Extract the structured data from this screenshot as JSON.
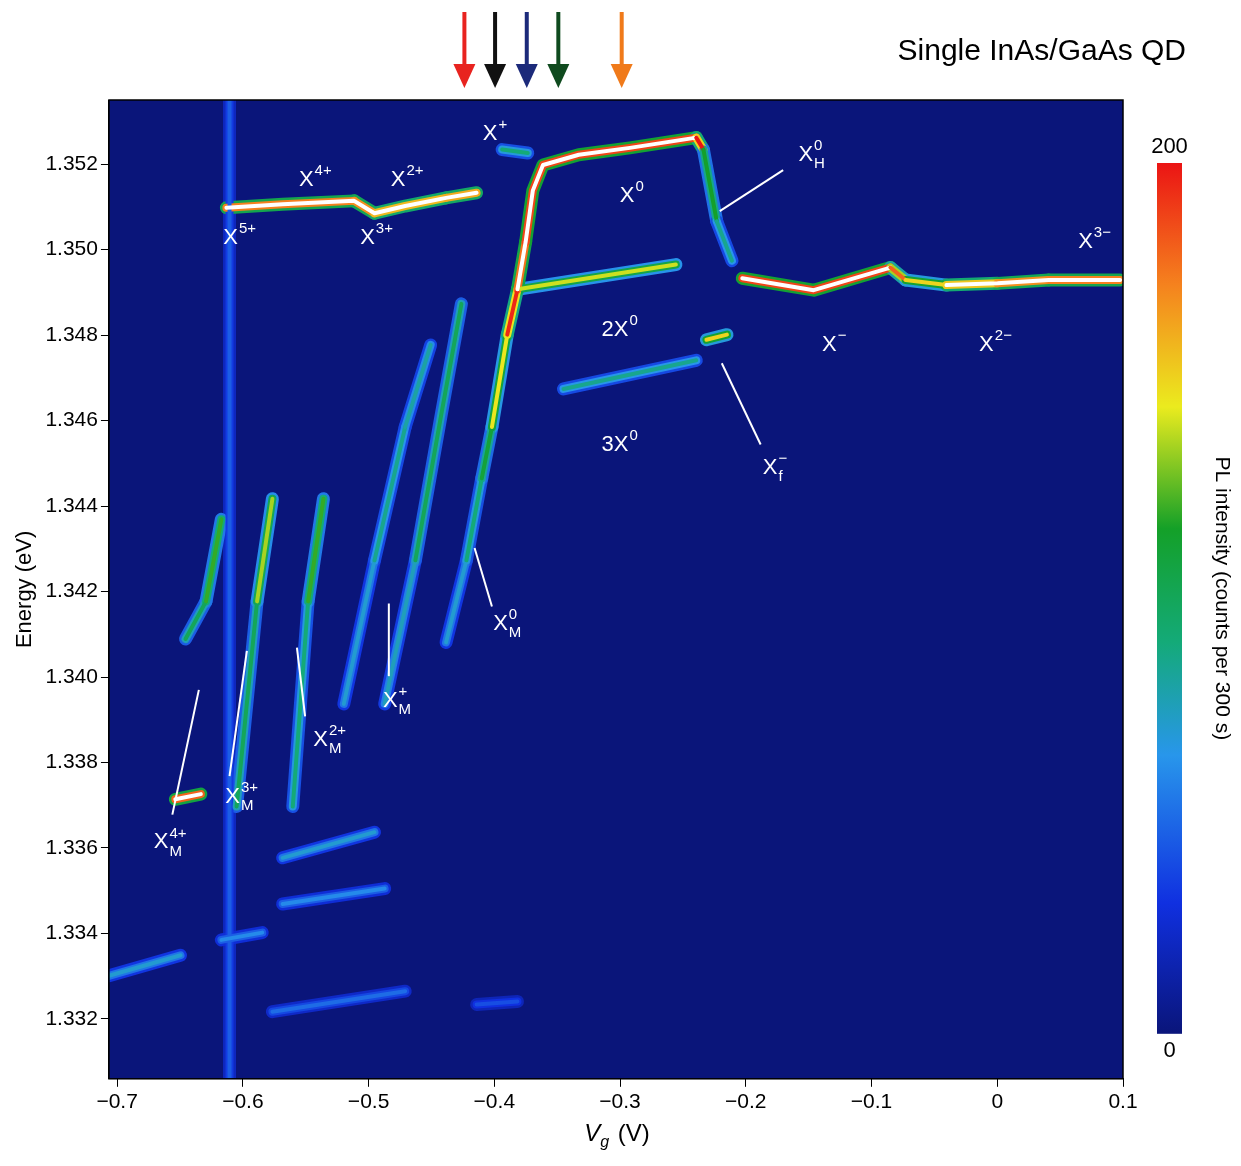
{
  "chart_data": {
    "type": "line",
    "title": "Single InAs/GaAs QD",
    "xlabel": {
      "text": "V",
      "sub": "g",
      "after": " (V)"
    },
    "ylabel": "Energy (eV)",
    "xlim": [
      -0.7065,
      0.1
    ],
    "ylim": [
      1.3306,
      1.3535
    ],
    "xticks": [
      {
        "value": -0.7,
        "label": "−0.7"
      },
      {
        "value": -0.6,
        "label": "−0.6"
      },
      {
        "value": -0.5,
        "label": "−0.5"
      },
      {
        "value": -0.4,
        "label": "−0.4"
      },
      {
        "value": -0.3,
        "label": "−0.3"
      },
      {
        "value": -0.2,
        "label": "−0.2"
      },
      {
        "value": -0.1,
        "label": "−0.1"
      },
      0,
      0.1
    ],
    "yticks": [
      1.332,
      1.334,
      1.336,
      1.338,
      {
        "value": 1.34,
        "label": "1.340"
      },
      1.342,
      1.344,
      1.346,
      1.348,
      {
        "value": 1.35,
        "label": "1.350"
      },
      1.352
    ],
    "grid": false,
    "colorbar": {
      "range": [
        0,
        200
      ],
      "ticks": [
        0,
        200
      ],
      "label": "PL intensity (counts per 300 s)"
    },
    "series": [
      {
        "x": [
          -0.6131,
          -0.5684,
          -0.5115,
          -0.4953,
          -0.4709,
          -0.4384,
          -0.4141
        ],
        "values": [
          1.35098,
          1.35106,
          1.35114,
          1.35085,
          1.35102,
          1.35121,
          1.35133
        ],
        "intensity": [
          230,
          230,
          230,
          220,
          200,
          220,
          210
        ]
      },
      {
        "x": [
          -0.3938,
          -0.3734
        ],
        "values": [
          1.35234,
          1.35226
        ],
        "intensity": [
          90,
          90
        ]
      },
      {
        "x": [
          -0.4384,
          -0.4222,
          -0.41,
          -0.4019,
          -0.3897,
          -0.3816,
          -0.3751,
          -0.3694,
          -0.3613,
          -0.3328,
          -0.2922,
          -0.2394,
          -0.2337,
          -0.2231,
          -0.211
        ],
        "values": [
          1.34081,
          1.34273,
          1.34465,
          1.34585,
          1.34801,
          1.34907,
          1.35018,
          1.35138,
          1.35198,
          1.35222,
          1.35238,
          1.35262,
          1.35234,
          1.35066,
          1.34974
        ],
        "intensity": [
          60,
          80,
          100,
          120,
          170,
          220,
          250,
          250,
          250,
          250,
          250,
          250,
          150,
          80,
          90
        ]
      },
      {
        "x": [
          -0.3816,
          -0.2556
        ],
        "values": [
          1.34907,
          1.34965
        ],
        "intensity": [
          170,
          110
        ]
      },
      {
        "x": [
          -0.345,
          -0.2394
        ],
        "values": [
          1.34674,
          1.34741
        ],
        "intensity": [
          80,
          90
        ]
      },
      {
        "x": [
          -0.2028,
          -0.146,
          -0.085,
          -0.0729,
          -0.0404,
          0.0002,
          0.0409,
          0.0977
        ],
        "values": [
          1.34933,
          1.34905,
          1.34958,
          1.34929,
          1.34917,
          1.34921,
          1.34929,
          1.34929
        ],
        "intensity": [
          250,
          250,
          250,
          110,
          190,
          220,
          230,
          230
        ]
      },
      {
        "x": [
          -0.2313,
          -0.215
        ],
        "values": [
          1.34789,
          1.34801
        ],
        "intensity": [
          150,
          150
        ]
      },
      {
        "x": [
          -0.4872,
          -0.4628,
          -0.4425,
          -0.4262
        ],
        "values": [
          1.33937,
          1.34273,
          1.34609,
          1.34873
        ],
        "intensity": [
          60,
          90,
          110,
          90
        ]
      },
      {
        "x": [
          -0.5197,
          -0.4953,
          -0.4709,
          -0.4506
        ],
        "values": [
          1.33937,
          1.34273,
          1.34585,
          1.34777
        ],
        "intensity": [
          60,
          80,
          90,
          70
        ]
      },
      {
        "x": [
          -0.5603,
          -0.5481,
          -0.5359
        ],
        "values": [
          1.33697,
          1.34177,
          1.34417
        ],
        "intensity": [
          50,
          130,
          110
        ]
      },
      {
        "x": [
          -0.605,
          -0.5887,
          -0.5765
        ],
        "values": [
          1.33697,
          1.34177,
          1.34417
        ],
        "intensity": [
          50,
          150,
          120
        ]
      },
      {
        "x": [
          -0.6456,
          -0.6293,
          -0.6171
        ],
        "values": [
          1.34089,
          1.34177,
          1.34369
        ],
        "intensity": [
          60,
          140,
          100
        ]
      },
      {
        "x": [
          -0.6537,
          -0.6334
        ],
        "values": [
          1.33714,
          1.33726
        ],
        "intensity": [
          240,
          240
        ]
      },
      {
        "x": [
          -0.7065,
          -0.6496
        ],
        "values": [
          1.33301,
          1.33349
        ],
        "intensity": [
          70,
          70
        ]
      },
      {
        "x": [
          -0.6171,
          -0.5846
        ],
        "values": [
          1.33385,
          1.33402
        ],
        "intensity": [
          60,
          60
        ]
      },
      {
        "x": [
          -0.5684,
          -0.4953
        ],
        "values": [
          1.33577,
          1.33637
        ],
        "intensity": [
          70,
          70
        ]
      },
      {
        "x": [
          -0.5684,
          -0.4872
        ],
        "values": [
          1.33469,
          1.33505
        ],
        "intensity": [
          60,
          60
        ]
      },
      {
        "x": [
          -0.5765,
          -0.4709
        ],
        "values": [
          1.33217,
          1.33265
        ],
        "intensity": [
          50,
          50
        ]
      },
      {
        "x": [
          -0.6106,
          -0.6106
        ],
        "values": [
          1.3306,
          1.3535
        ],
        "intensity": [
          45,
          45
        ]
      },
      {
        "x": [
          -0.4141,
          -0.3816
        ],
        "values": [
          1.33234,
          1.33241
        ],
        "intensity": [
          40,
          40
        ]
      }
    ],
    "annotations": [
      {
        "text": "X",
        "sup": "5+",
        "x": -0.6025,
        "y": 1.35027
      },
      {
        "text": "X",
        "sup": "4+",
        "x": -0.5424,
        "y": 1.35162
      },
      {
        "text": "X",
        "sup": "2+",
        "x": -0.4693,
        "y": 1.35162
      },
      {
        "text": "X",
        "sup": "3+",
        "x": -0.4937,
        "y": 1.35027
      },
      {
        "text": "X",
        "sup": "+",
        "x": -0.3994,
        "y": 1.3527
      },
      {
        "text": "X",
        "sup": "0",
        "x": -0.2906,
        "y": 1.35126
      },
      {
        "text": "X",
        "sub": "H",
        "sup": "0",
        "x": -0.1476,
        "y": 1.35222,
        "line": [
          [
            -0.1703,
            1.35186
          ],
          [
            -0.2207,
            1.3509
          ]
        ]
      },
      {
        "text": "X",
        "sup": "3−",
        "x": 0.0774,
        "y": 1.35018
      },
      {
        "text": "X",
        "sup": "−",
        "x": -0.1297,
        "y": 1.34777
      },
      {
        "text": "X",
        "sup": "2−",
        "x": -0.0014,
        "y": 1.34777
      },
      {
        "text": "2X",
        "sup": "0",
        "x": -0.3003,
        "y": 1.34813
      },
      {
        "text": "3X",
        "sup": "0",
        "x": -0.3003,
        "y": 1.34544
      },
      {
        "text": "X",
        "sub": "f",
        "sup": "−",
        "x": -0.1768,
        "y": 1.34489,
        "line": [
          [
            -0.1882,
            1.34544
          ],
          [
            -0.2191,
            1.34734
          ]
        ]
      },
      {
        "text": "X",
        "sub": "M",
        "sup": "0",
        "x": -0.3897,
        "y": 1.34124,
        "line": [
          [
            -0.4019,
            1.34165
          ],
          [
            -0.4157,
            1.34302
          ]
        ]
      },
      {
        "text": "X",
        "sub": "M",
        "sup": "+",
        "x": -0.4774,
        "y": 1.33944,
        "line": [
          [
            -0.4839,
            1.34002
          ],
          [
            -0.4839,
            1.34172
          ]
        ]
      },
      {
        "text": "X",
        "sub": "M",
        "sup": "2+",
        "x": -0.531,
        "y": 1.33853,
        "line": [
          [
            -0.5505,
            1.33908
          ],
          [
            -0.557,
            1.34069
          ]
        ]
      },
      {
        "text": "X",
        "sub": "M",
        "sup": "3+",
        "x": -0.6009,
        "y": 1.3372,
        "line": [
          [
            -0.6106,
            1.33768
          ],
          [
            -0.5968,
            1.34061
          ]
        ]
      },
      {
        "text": "X",
        "sub": "M",
        "sup": "4+",
        "x": -0.6578,
        "y": 1.33613,
        "line": [
          [
            -0.6561,
            1.33678
          ],
          [
            -0.635,
            1.3397
          ]
        ]
      }
    ],
    "arrows": [
      {
        "x": -0.4238,
        "color": "#e8231f"
      },
      {
        "x": -0.3994,
        "color": "#111111"
      },
      {
        "x": -0.3742,
        "color": "#1c2a7a"
      },
      {
        "x": -0.3491,
        "color": "#0f4a1e"
      },
      {
        "x": -0.2987,
        "color": "#f07a1a"
      }
    ]
  }
}
